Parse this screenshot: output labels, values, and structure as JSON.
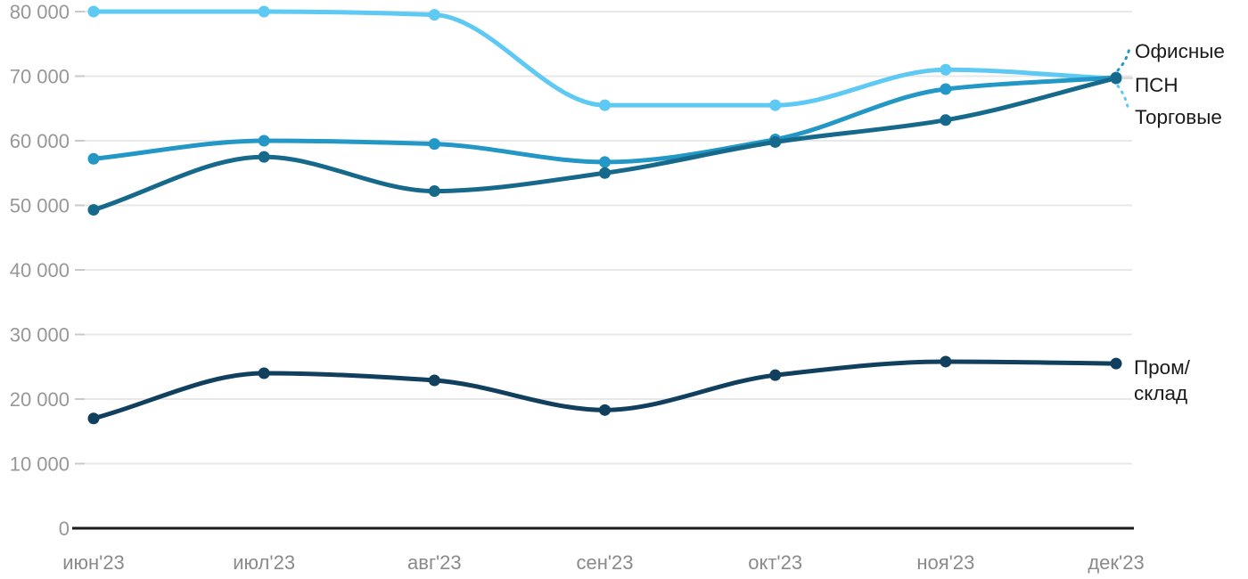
{
  "chart_data": {
    "type": "line",
    "title": "",
    "xlabel": "",
    "ylabel": "",
    "x_categories": [
      "июн'23",
      "июл'23",
      "авг'23",
      "сен'23",
      "окт'23",
      "ноя'23",
      "дек'23"
    ],
    "series": [
      {
        "name": "Торговые",
        "slug": "torgovye",
        "color": "#5EC9F2",
        "values": [
          80000,
          80000,
          79500,
          65500,
          65500,
          71000,
          69600
        ],
        "end_label_connector": "dashed"
      },
      {
        "name": "Офисные",
        "slug": "ofisnye",
        "color": "#2397C6",
        "values": [
          57200,
          60000,
          59500,
          56700,
          60200,
          68000,
          69800
        ],
        "end_label_connector": "dashed"
      },
      {
        "name": "ПСН",
        "slug": "psn",
        "color": "#17698C",
        "values": [
          49300,
          57500,
          52200,
          55000,
          59800,
          63200,
          69700
        ],
        "end_label_connector": "solid-gray"
      },
      {
        "name": "Пром/склад",
        "slug": "prom-sklad",
        "color": "#113F5E",
        "values": [
          17000,
          24000,
          22900,
          18300,
          23700,
          25800,
          25500
        ],
        "end_label_connector": "none"
      }
    ],
    "y_ticks": [
      {
        "value": 0,
        "label": "0"
      },
      {
        "value": 10000,
        "label": "10 000"
      },
      {
        "value": 20000,
        "label": "20 000"
      },
      {
        "value": 30000,
        "label": "30 000"
      },
      {
        "value": 40000,
        "label": "40 000"
      },
      {
        "value": 50000,
        "label": "50 000"
      },
      {
        "value": 60000,
        "label": "60 000"
      },
      {
        "value": 70000,
        "label": "70 000"
      },
      {
        "value": 80000,
        "label": "80 000"
      }
    ],
    "ylim": [
      0,
      80000
    ],
    "grid": "horizontal",
    "legend_position": "end-of-line-labels-right",
    "end_labels": [
      {
        "series": "Офисные",
        "lines": [
          "Офисные"
        ]
      },
      {
        "series": "ПСН",
        "lines": [
          "ПСН"
        ]
      },
      {
        "series": "Торговые",
        "lines": [
          "Торговые"
        ]
      },
      {
        "series": "Пром/склад",
        "lines": [
          "Пром/",
          "склад"
        ]
      }
    ]
  },
  "colors": {
    "grid_line": "#e8e8e8",
    "grid_tick": "#c9c9c9",
    "axis_baseline": "#1a1a1a",
    "y_tick_text": "#979797",
    "x_tick_text": "#8a8a8a",
    "end_label_text": "#1a1a1a",
    "psn_connector": "#dadada",
    "background": "#ffffff"
  }
}
